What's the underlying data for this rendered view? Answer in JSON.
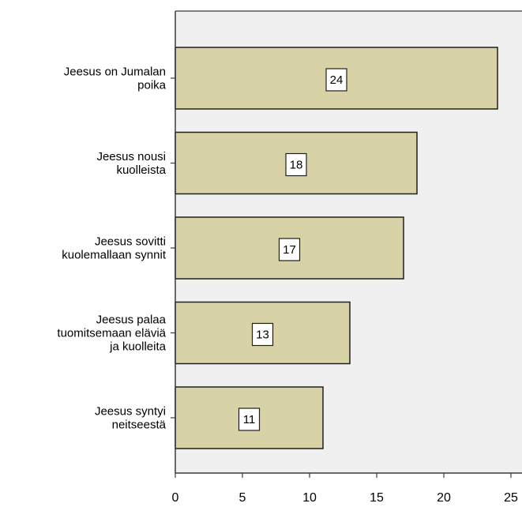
{
  "chart_data": {
    "type": "bar",
    "orientation": "horizontal",
    "categories": [
      [
        "Jeesus on Jumalan",
        "poika"
      ],
      [
        "Jeesus nousi",
        "kuolleista"
      ],
      [
        "Jeesus sovitti",
        "kuolemallaan synnit"
      ],
      [
        "Jeesus palaa",
        "tuomitsemaan eläviä",
        "ja kuolleita"
      ],
      [
        "Jeesus syntyi",
        "neitseestä"
      ]
    ],
    "values": [
      24,
      18,
      17,
      13,
      11
    ],
    "value_labels": [
      "24",
      "18",
      "17",
      "13",
      "11"
    ],
    "xlim": [
      0,
      25
    ],
    "xticks": [
      0,
      5,
      10,
      15,
      20,
      25
    ],
    "xtick_labels": [
      "0",
      "5",
      "10",
      "15",
      "20",
      "25"
    ],
    "title": "",
    "xlabel": "",
    "ylabel": "",
    "grid": false,
    "legend": "none",
    "colors": {
      "bar_fill": "#d8d3a6",
      "bar_stroke": "#1f1f1f",
      "plot_background": "#f0f0f0",
      "axis": "#3a3a3a",
      "label_box": "#ffffff"
    }
  }
}
